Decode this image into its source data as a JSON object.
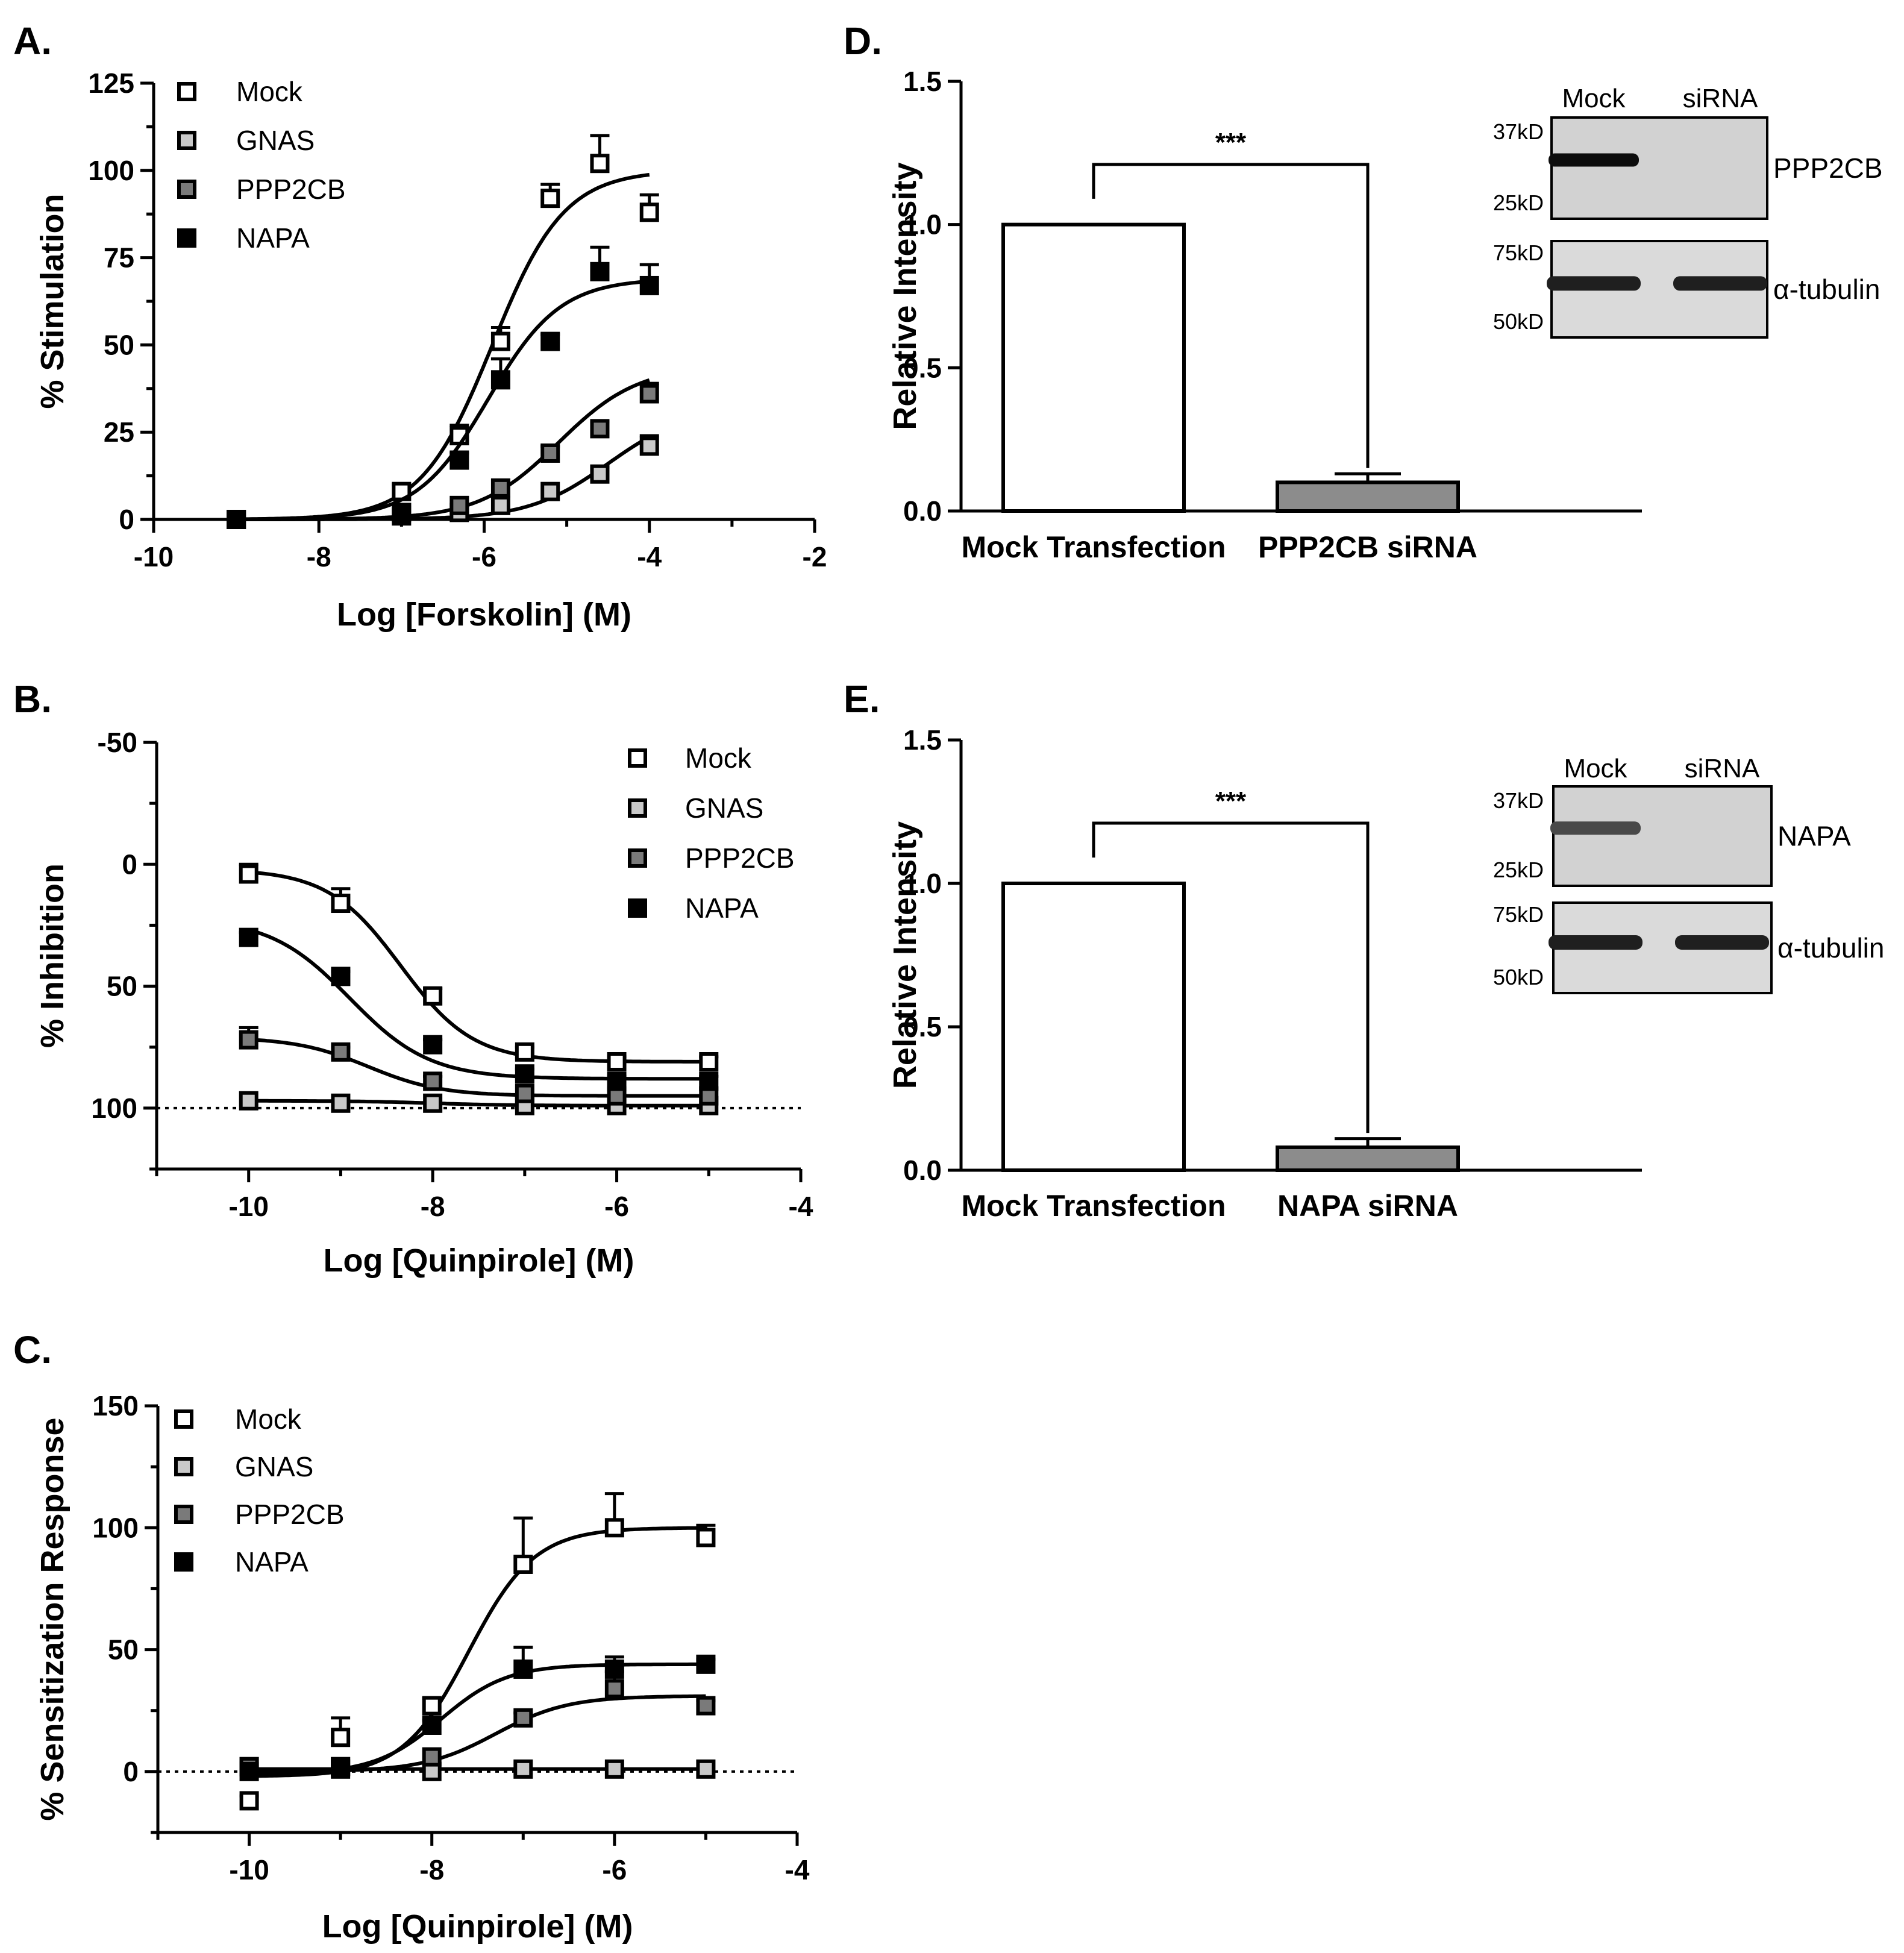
{
  "chart_data": [
    {
      "panel": "A.",
      "type": "scatter",
      "ylabel": "% Stimulation",
      "xlabel": "Log [Forskolin] (M)",
      "xlim": [
        -10,
        -2
      ],
      "ylim": [
        0,
        125
      ],
      "xticks": [
        -10,
        -8,
        -6,
        -4,
        -2
      ],
      "yticks": [
        0,
        25,
        50,
        75,
        100,
        125
      ],
      "legend_position": "top-left",
      "series": [
        {
          "name": "Mock",
          "fill": "#ffffff",
          "x": [
            -9,
            -7,
            -6.3,
            -5.8,
            -5.2,
            -4.6,
            -4
          ],
          "y": [
            0,
            8,
            24,
            51,
            92,
            102,
            88
          ],
          "err": [
            1,
            2,
            3,
            4,
            4,
            8,
            5
          ],
          "fit": {
            "bottom": 0,
            "top": 100,
            "logec50": -5.9,
            "hill": 1.0
          }
        },
        {
          "name": "GNAS",
          "fill": "#c9c9c9",
          "x": [
            -9,
            -7,
            -6.3,
            -5.8,
            -5.2,
            -4.6,
            -4
          ],
          "y": [
            0,
            1,
            2,
            4,
            8,
            13,
            21
          ],
          "err": [
            0,
            1,
            1,
            1,
            1,
            2,
            3
          ],
          "fit": {
            "bottom": 0,
            "top": 32,
            "logec50": -4.5,
            "hill": 0.9
          }
        },
        {
          "name": "PPP2CB",
          "fill": "#7a7a7a",
          "x": [
            -9,
            -7,
            -6.3,
            -5.8,
            -5.2,
            -4.6,
            -4
          ],
          "y": [
            0,
            2,
            4,
            9,
            19,
            26,
            36
          ],
          "err": [
            0,
            1,
            1,
            1,
            2,
            2,
            3
          ],
          "fit": {
            "bottom": 0,
            "top": 44,
            "logec50": -5.1,
            "hill": 0.9
          }
        },
        {
          "name": "NAPA",
          "fill": "#000000",
          "x": [
            -9,
            -7,
            -6.3,
            -5.8,
            -5.2,
            -4.6,
            -4
          ],
          "y": [
            0,
            2,
            17,
            40,
            51,
            71,
            67
          ],
          "err": [
            0,
            1,
            2,
            6,
            2,
            7,
            6
          ],
          "fit": {
            "bottom": 0,
            "top": 69,
            "logec50": -5.95,
            "hill": 1.0
          }
        }
      ]
    },
    {
      "panel": "B.",
      "type": "scatter",
      "ylabel": "% Inhibition",
      "xlabel": "Log [Quinpirole] (M)",
      "xlim": [
        -11,
        -4
      ],
      "ylim": [
        -50,
        125
      ],
      "y_inverted": true,
      "xticks": [
        -10,
        -8,
        -6,
        -4
      ],
      "yticks": [
        -50,
        0,
        50,
        100
      ],
      "reference_line": 100,
      "legend_position": "top-right",
      "series": [
        {
          "name": "Mock",
          "fill": "#ffffff",
          "x": [
            -10,
            -9,
            -8,
            -7,
            -6,
            -5
          ],
          "y": [
            4,
            16,
            54,
            77,
            81,
            81
          ],
          "err": [
            4,
            6,
            3,
            2,
            2,
            2
          ],
          "fit": {
            "bottom": 2,
            "top": 81,
            "logec50": -8.35,
            "hill": 1.1
          }
        },
        {
          "name": "GNAS",
          "fill": "#c9c9c9",
          "x": [
            -10,
            -9,
            -8,
            -7,
            -6,
            -5
          ],
          "y": [
            97,
            98,
            98,
            99,
            99,
            99
          ],
          "err": [
            1,
            1,
            1,
            1,
            1,
            1
          ],
          "fit": {
            "bottom": 97,
            "top": 99,
            "logec50": -8,
            "hill": 1
          }
        },
        {
          "name": "PPP2CB",
          "fill": "#7a7a7a",
          "x": [
            -10,
            -9,
            -8,
            -7,
            -6,
            -5
          ],
          "y": [
            72,
            77,
            89,
            94,
            95,
            95
          ],
          "err": [
            5,
            2,
            2,
            1,
            1,
            1
          ],
          "fit": {
            "bottom": 71,
            "top": 95,
            "logec50": -8.7,
            "hill": 1.1
          }
        },
        {
          "name": "NAPA",
          "fill": "#000000",
          "x": [
            -10,
            -9,
            -8,
            -7,
            -6,
            -5
          ],
          "y": [
            30,
            46,
            74,
            86,
            89,
            89
          ],
          "err": [
            2,
            2,
            2,
            2,
            2,
            2
          ],
          "fit": {
            "bottom": 22,
            "top": 88,
            "logec50": -8.9,
            "hill": 1.0
          }
        }
      ]
    },
    {
      "panel": "C.",
      "type": "scatter",
      "ylabel": "% Sensitization Response",
      "xlabel": "Log [Quinpirole] (M)",
      "xlim": [
        -11,
        -4
      ],
      "ylim": [
        -25,
        150
      ],
      "xticks": [
        -10,
        -8,
        -6,
        -4
      ],
      "yticks": [
        0,
        50,
        100,
        150
      ],
      "reference_line": 0,
      "legend_position": "top-left",
      "series": [
        {
          "name": "Mock",
          "fill": "#ffffff",
          "x": [
            -10,
            -9,
            -8,
            -7,
            -6,
            -5
          ],
          "y": [
            -12,
            14,
            27,
            85,
            100,
            96
          ],
          "err": [
            2,
            8,
            3,
            19,
            14,
            5
          ],
          "fit": {
            "bottom": -2,
            "top": 100,
            "logec50": -7.6,
            "hill": 1.2
          }
        },
        {
          "name": "GNAS",
          "fill": "#c9c9c9",
          "x": [
            -10,
            -9,
            -8,
            -7,
            -6,
            -5
          ],
          "y": [
            2,
            1,
            0,
            1,
            1,
            1
          ],
          "err": [
            1,
            1,
            1,
            1,
            1,
            1
          ],
          "fit": {
            "bottom": 1,
            "top": 1,
            "logec50": -8,
            "hill": 1
          }
        },
        {
          "name": "PPP2CB",
          "fill": "#7a7a7a",
          "x": [
            -10,
            -9,
            -8,
            -7,
            -6,
            -5
          ],
          "y": [
            2,
            2,
            6,
            22,
            34,
            27
          ],
          "err": [
            1,
            1,
            1,
            2,
            7,
            2
          ],
          "fit": {
            "bottom": 0,
            "top": 31,
            "logec50": -7.3,
            "hill": 1.1
          }
        },
        {
          "name": "NAPA",
          "fill": "#000000",
          "x": [
            -10,
            -9,
            -8,
            -7,
            -6,
            -5
          ],
          "y": [
            0,
            2,
            19,
            42,
            42,
            44
          ],
          "err": [
            1,
            1,
            2,
            9,
            5,
            2
          ],
          "fit": {
            "bottom": -1,
            "top": 44,
            "logec50": -7.9,
            "hill": 1.2
          }
        }
      ]
    },
    {
      "panel": "D.",
      "type": "bar",
      "ylabel": "Relative Intensity",
      "categories": [
        "Mock Transfection",
        "PPP2CB siRNA"
      ],
      "values": [
        1.0,
        0.1
      ],
      "err": [
        0,
        0.03
      ],
      "bar_fill": [
        "#ffffff",
        "#8c8c8c"
      ],
      "ylim": [
        0,
        1.5
      ],
      "yticks": [
        "0.0",
        "0.5",
        "1.0",
        "1.5"
      ],
      "significance": "***",
      "blot": {
        "lanes": [
          "Mock",
          "siRNA"
        ],
        "top_markers": [
          "37kD",
          "25kD"
        ],
        "top_label": "PPP2CB",
        "bottom_markers": [
          "75kD",
          "50kD"
        ],
        "bottom_label": "α-tubulin",
        "band_intensity": [
          1.0,
          0.0
        ]
      }
    },
    {
      "panel": "E.",
      "type": "bar",
      "ylabel": "Relative Intensity",
      "categories": [
        "Mock Transfection",
        "NAPA siRNA"
      ],
      "values": [
        1.0,
        0.08
      ],
      "err": [
        0,
        0.03
      ],
      "bar_fill": [
        "#ffffff",
        "#8c8c8c"
      ],
      "ylim": [
        0,
        1.5
      ],
      "yticks": [
        "0.0",
        "0.5",
        "1.0",
        "1.5"
      ],
      "significance": "***",
      "blot": {
        "lanes": [
          "Mock",
          "siRNA"
        ],
        "top_markers": [
          "37kD",
          "25kD"
        ],
        "top_label": "NAPA",
        "bottom_markers": [
          "75kD",
          "50kD"
        ],
        "bottom_label": "α-tubulin",
        "band_intensity": [
          0.75,
          0.0
        ]
      }
    }
  ]
}
